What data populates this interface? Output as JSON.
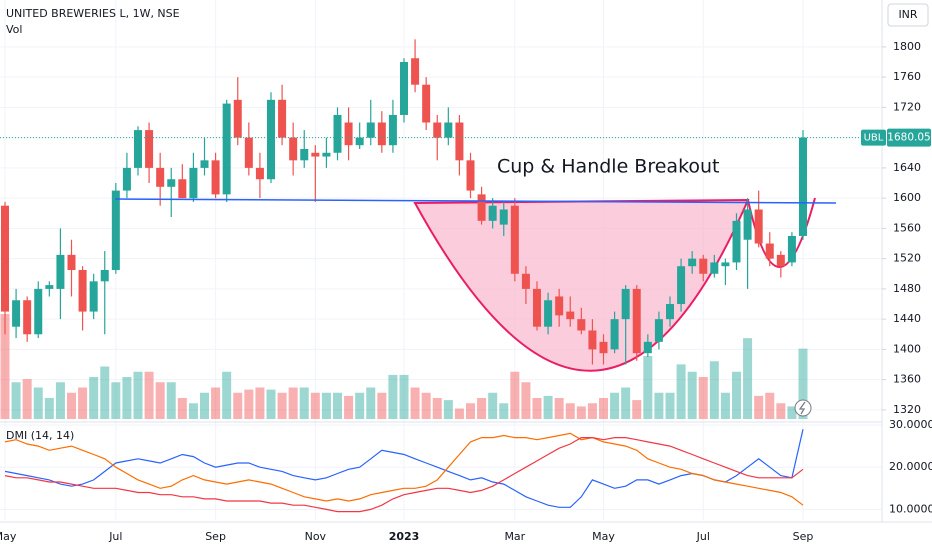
{
  "chart_data": [
    {
      "type": "candlestick",
      "title": "UNITED BREWERIES L, 1W, NSE",
      "subtitle": "Vol",
      "annotation": "Cup & Handle Breakout",
      "currency": "INR",
      "categories": [
        "May",
        null,
        null,
        null,
        null,
        null,
        null,
        null,
        null,
        null,
        "Jul",
        null,
        null,
        null,
        null,
        null,
        null,
        null,
        null,
        "Sep",
        null,
        null,
        null,
        null,
        null,
        null,
        null,
        null,
        "Nov",
        null,
        null,
        null,
        null,
        null,
        null,
        null,
        "2023",
        null,
        null,
        null,
        null,
        null,
        null,
        null,
        null,
        null,
        "Mar",
        null,
        null,
        null,
        null,
        null,
        null,
        null,
        "May",
        null,
        null,
        null,
        null,
        null,
        null,
        null,
        null,
        "Jul",
        null,
        null,
        null,
        null,
        null,
        null,
        null,
        null,
        "Sep"
      ],
      "open": [
        1590,
        1430,
        1465,
        1420,
        1480,
        1480,
        1525,
        1505,
        1450,
        1490,
        1505,
        1610,
        1640,
        1690,
        1640,
        1615,
        1625,
        1600,
        1640,
        1650,
        1605,
        1730,
        1680,
        1640,
        1625,
        1730,
        1680,
        1650,
        1660,
        1655,
        1660,
        1700,
        1670,
        1680,
        1700,
        1670,
        1710,
        1785,
        1750,
        1700,
        1680,
        1700,
        1650,
        1605,
        1570,
        1565,
        1590,
        1500,
        1480,
        1430,
        1470,
        1450,
        1440,
        1425,
        1410,
        1400,
        1440,
        1480,
        1395,
        1410,
        1440,
        1460,
        1510,
        1520,
        1500,
        1510,
        1515,
        1545,
        1585,
        1540,
        1525,
        1515,
        1550
      ],
      "high": [
        1595,
        1480,
        1470,
        1490,
        1490,
        1560,
        1545,
        1510,
        1500,
        1530,
        1620,
        1660,
        1695,
        1700,
        1660,
        1640,
        1645,
        1660,
        1680,
        1660,
        1730,
        1760,
        1700,
        1660,
        1740,
        1750,
        1700,
        1690,
        1670,
        1680,
        1720,
        1720,
        1700,
        1730,
        1715,
        1730,
        1785,
        1810,
        1760,
        1710,
        1720,
        1710,
        1660,
        1615,
        1600,
        1595,
        1600,
        1510,
        1490,
        1475,
        1480,
        1470,
        1455,
        1440,
        1420,
        1450,
        1485,
        1485,
        1420,
        1450,
        1470,
        1520,
        1530,
        1525,
        1525,
        1520,
        1580,
        1600,
        1610,
        1555,
        1530,
        1555,
        1690
      ],
      "low": [
        1420,
        1415,
        1410,
        1415,
        1470,
        1440,
        1470,
        1425,
        1440,
        1420,
        1500,
        1600,
        1630,
        1620,
        1590,
        1575,
        1600,
        1595,
        1630,
        1600,
        1595,
        1670,
        1630,
        1600,
        1620,
        1670,
        1630,
        1640,
        1595,
        1640,
        1650,
        1650,
        1665,
        1670,
        1660,
        1660,
        1700,
        1740,
        1690,
        1650,
        1670,
        1630,
        1600,
        1565,
        1560,
        1550,
        1490,
        1460,
        1425,
        1420,
        1430,
        1430,
        1420,
        1380,
        1380,
        1395,
        1380,
        1385,
        1390,
        1400,
        1430,
        1450,
        1500,
        1490,
        1495,
        1485,
        1505,
        1480,
        1535,
        1510,
        1495,
        1510,
        1545
      ],
      "close": [
        1450,
        1465,
        1420,
        1480,
        1485,
        1525,
        1505,
        1450,
        1490,
        1505,
        1610,
        1640,
        1690,
        1640,
        1615,
        1625,
        1600,
        1640,
        1650,
        1605,
        1725,
        1680,
        1640,
        1625,
        1730,
        1680,
        1650,
        1665,
        1655,
        1660,
        1710,
        1670,
        1680,
        1700,
        1670,
        1710,
        1780,
        1750,
        1700,
        1680,
        1700,
        1650,
        1610,
        1570,
        1590,
        1585,
        1500,
        1480,
        1430,
        1465,
        1445,
        1440,
        1425,
        1400,
        1395,
        1440,
        1480,
        1395,
        1410,
        1440,
        1460,
        1510,
        1520,
        1500,
        1515,
        1515,
        1570,
        1585,
        1540,
        1520,
        1510,
        1550,
        1680
      ],
      "volume": [
        100,
        35,
        38,
        30,
        20,
        35,
        25,
        30,
        40,
        50,
        35,
        40,
        45,
        45,
        35,
        35,
        20,
        15,
        25,
        30,
        45,
        25,
        28,
        30,
        28,
        25,
        30,
        30,
        25,
        25,
        25,
        22,
        25,
        30,
        25,
        42,
        42,
        30,
        25,
        20,
        18,
        10,
        15,
        20,
        25,
        15,
        45,
        35,
        20,
        22,
        20,
        15,
        12,
        15,
        20,
        25,
        30,
        18,
        60,
        25,
        25,
        52,
        45,
        40,
        55,
        25,
        45,
        77,
        22,
        25,
        15,
        12,
        67
      ],
      "up_color": "#26a69a",
      "down_color": "#ef5350",
      "ylim": [
        1304,
        1862
      ],
      "yticks": [
        1320,
        1360,
        1400,
        1440,
        1480,
        1520,
        1560,
        1600,
        1640,
        1680,
        1720,
        1760,
        1800
      ],
      "grid": true,
      "last_price": {
        "name": "UBL",
        "value": 1680.05,
        "color": "#26a69a"
      }
    },
    {
      "type": "line",
      "title": "DMI (14, 14)",
      "series": [
        {
          "color": "#2962ff",
          "values": [
            19,
            18.5,
            18,
            17.5,
            17,
            16,
            15.5,
            16,
            17,
            19,
            21,
            21.5,
            22,
            21.5,
            21,
            22,
            23,
            22.5,
            21,
            20,
            20.5,
            21,
            21,
            20,
            19.5,
            19,
            18,
            17.5,
            17,
            17.5,
            18.5,
            19.5,
            20,
            22,
            24,
            23.5,
            23,
            22,
            21,
            20,
            19,
            18,
            17,
            17.5,
            16.5,
            16,
            14.5,
            13,
            12,
            11,
            10.5,
            10.5,
            13,
            17,
            16,
            15,
            15.5,
            17,
            17,
            16,
            17,
            18,
            18.5,
            18,
            17,
            16.5,
            18,
            20,
            22,
            20,
            18,
            17.5,
            29
          ]
        },
        {
          "color": "#ff6d00",
          "values": [
            26,
            26.5,
            25.5,
            25,
            24,
            24.5,
            25,
            24,
            23,
            22,
            20,
            18.5,
            17,
            16,
            15,
            15.5,
            17,
            18,
            17,
            16.5,
            16,
            16.5,
            17,
            16.5,
            16,
            15,
            14,
            13,
            12.5,
            12,
            12.5,
            12,
            12.5,
            13.5,
            14,
            14.5,
            15,
            15,
            15.5,
            17,
            20,
            23,
            26,
            27,
            27,
            27.5,
            27,
            27,
            26.5,
            27,
            27.5,
            28,
            26.5,
            27,
            26,
            25.5,
            25,
            24,
            22,
            21,
            20,
            19.5,
            18.5,
            18,
            17,
            16.5,
            16,
            15.5,
            15,
            14.5,
            14,
            13,
            11
          ]
        },
        {
          "color": "#f23645",
          "values": [
            18,
            17.5,
            17.5,
            17,
            16.5,
            16.5,
            16,
            15.5,
            15,
            15,
            15,
            14.5,
            14,
            14,
            13.5,
            13.5,
            13,
            13,
            12.5,
            12.5,
            12,
            12,
            12,
            12,
            11.5,
            11.5,
            11,
            11,
            10.5,
            10,
            9.5,
            9.5,
            9.5,
            10,
            11,
            12.5,
            13.5,
            14,
            14.5,
            15,
            15,
            14.5,
            14,
            14.5,
            15.5,
            17,
            18.5,
            20,
            21.5,
            23,
            24.5,
            25.5,
            27,
            27,
            26.5,
            27,
            27,
            26.5,
            26,
            25.5,
            25,
            24,
            23,
            22,
            21,
            20,
            19,
            18,
            17.5,
            17.5,
            17.5,
            17.5,
            19.5
          ]
        }
      ],
      "ylim": [
        7.5,
        30.7
      ],
      "yticks": [
        {
          "value": 10,
          "label": "10.0000"
        },
        {
          "value": 20,
          "label": "20.0000"
        },
        {
          "value": 30,
          "label": "30.0000"
        }
      ]
    }
  ]
}
